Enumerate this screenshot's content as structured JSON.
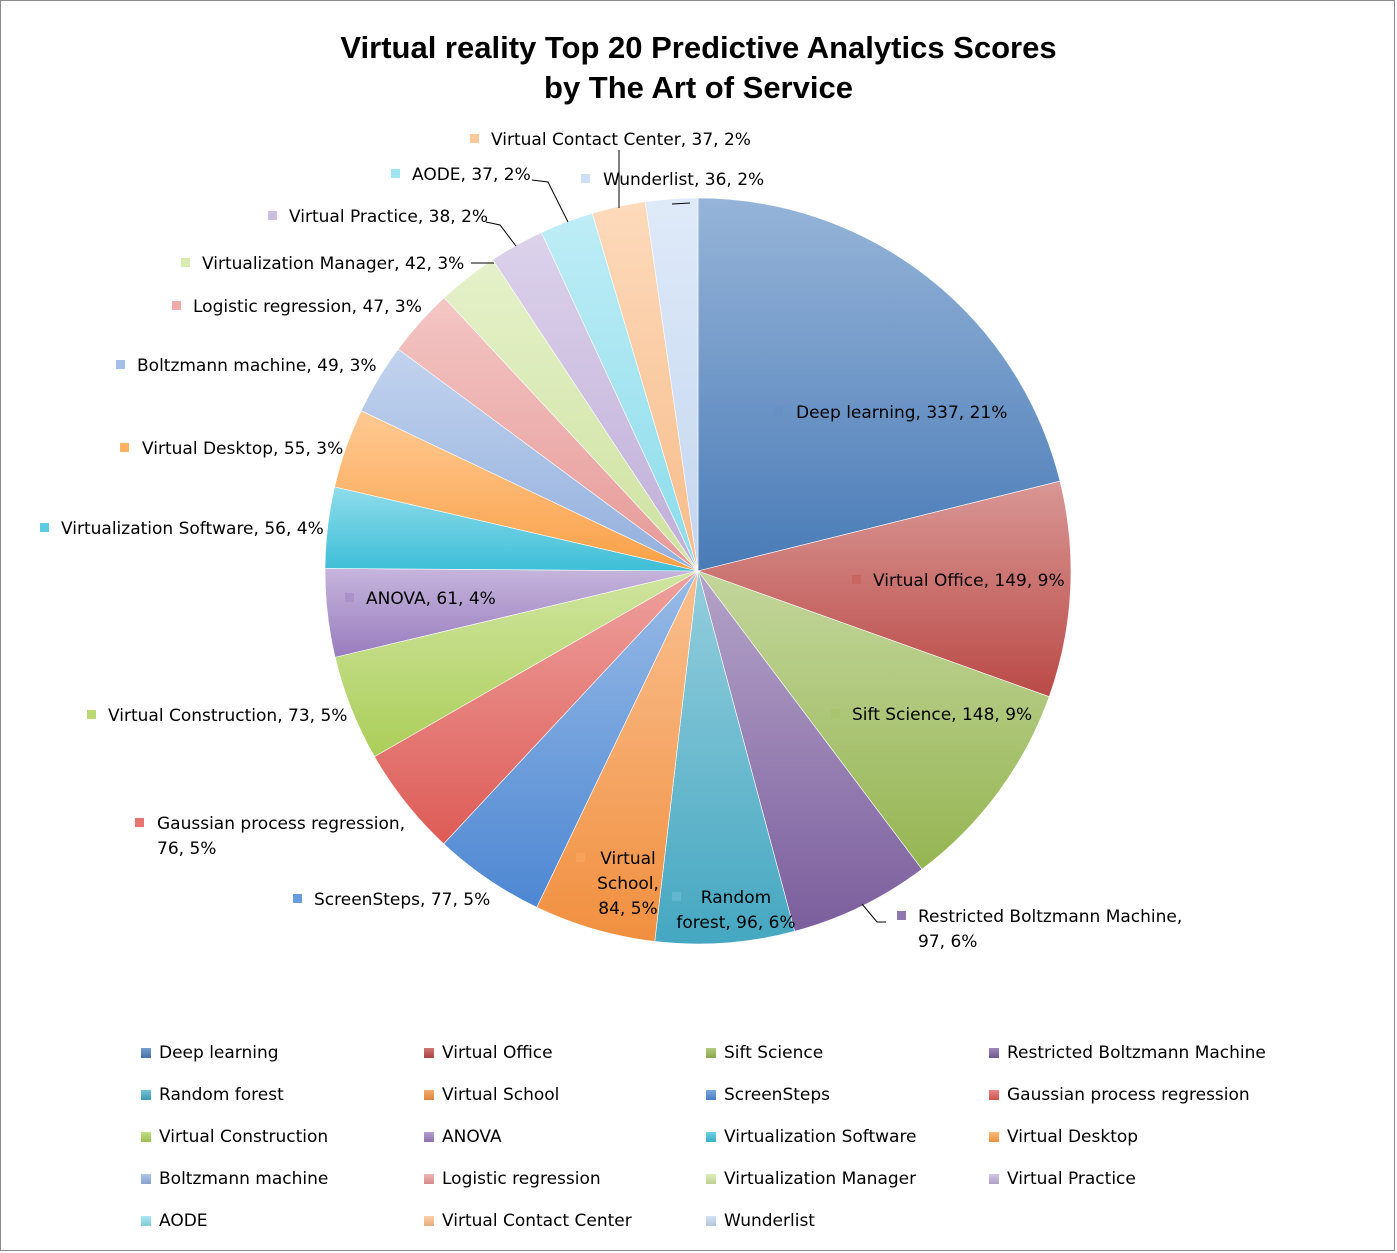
{
  "chart_data": {
    "type": "pie",
    "title": [
      "Virtual reality Top 20 Predictive Analytics Scores",
      "by The Art of Service"
    ],
    "legend_position": "bottom",
    "slices": [
      {
        "label": "Deep learning",
        "value": 337,
        "percent": "21%",
        "color": "#4a7ebb"
      },
      {
        "label": "Virtual Office",
        "value": 149,
        "percent": "9%",
        "color": "#be4b48"
      },
      {
        "label": "Sift Science",
        "value": 148,
        "percent": "9%",
        "color": "#98b954"
      },
      {
        "label": "Restricted Boltzmann Machine",
        "value": 97,
        "percent": "6%",
        "color": "#7d60a0"
      },
      {
        "label": "Random forest",
        "value": 96,
        "percent": "6%",
        "color": "#46aac5"
      },
      {
        "label": "Virtual School",
        "value": 84,
        "percent": "5%",
        "color": "#f69240"
      },
      {
        "label": "ScreenSteps",
        "value": 77,
        "percent": "5%",
        "color": "#4f8ad6"
      },
      {
        "label": "Gaussian process regression",
        "value": 76,
        "percent": "5%",
        "color": "#e15d58"
      },
      {
        "label": "Virtual Construction",
        "value": 73,
        "percent": "5%",
        "color": "#aed25b"
      },
      {
        "label": "ANOVA",
        "value": 61,
        "percent": "4%",
        "color": "#9c7fc2"
      },
      {
        "label": "Virtualization Software",
        "value": 56,
        "percent": "4%",
        "color": "#3ec2db"
      },
      {
        "label": "Virtual Desktop",
        "value": 55,
        "percent": "3%",
        "color": "#ffa347"
      },
      {
        "label": "Boltzmann machine",
        "value": 49,
        "percent": "3%",
        "color": "#95b3e2"
      },
      {
        "label": "Logistic regression",
        "value": 47,
        "percent": "3%",
        "color": "#eb9c9a"
      },
      {
        "label": "Virtualization Manager",
        "value": 42,
        "percent": "3%",
        "color": "#d2e7a3"
      },
      {
        "label": "Virtual Practice",
        "value": 38,
        "percent": "2%",
        "color": "#c3b2dc"
      },
      {
        "label": "AODE",
        "value": 37,
        "percent": "2%",
        "color": "#8fe0f0"
      },
      {
        "label": "Virtual Contact Center",
        "value": 37,
        "percent": "2%",
        "color": "#fcc08c"
      },
      {
        "label": "Wunderlist",
        "value": 36,
        "percent": "2%",
        "color": "#c7daf4"
      }
    ],
    "data_labels": [
      [
        "Deep learning, 337, 21%"
      ],
      [
        "Virtual Office, 149, 9%"
      ],
      [
        "Sift Science, 148, 9%"
      ],
      [
        "Restricted Boltzmann Machine,",
        "97, 6%"
      ],
      [
        "Random",
        "forest, 96, 6%"
      ],
      [
        "Virtual",
        "School,",
        "84, 5%"
      ],
      [
        "ScreenSteps, 77, 5%"
      ],
      [
        "Gaussian process regression,",
        "76, 5%"
      ],
      [
        "Virtual Construction, 73, 5%"
      ],
      [
        "ANOVA, 61, 4%"
      ],
      [
        "Virtualization Software, 56, 4%"
      ],
      [
        "Virtual Desktop, 55, 3%"
      ],
      [
        "Boltzmann machine, 49, 3%"
      ],
      [
        "Logistic regression, 47, 3%"
      ],
      [
        "Virtualization Manager, 42, 3%"
      ],
      [
        "Virtual Practice, 38, 2%"
      ],
      [
        "AODE, 37, 2%"
      ],
      [
        "Virtual Contact Center, 37, 2%"
      ],
      [
        "Wunderlist, 36, 2%"
      ]
    ]
  }
}
